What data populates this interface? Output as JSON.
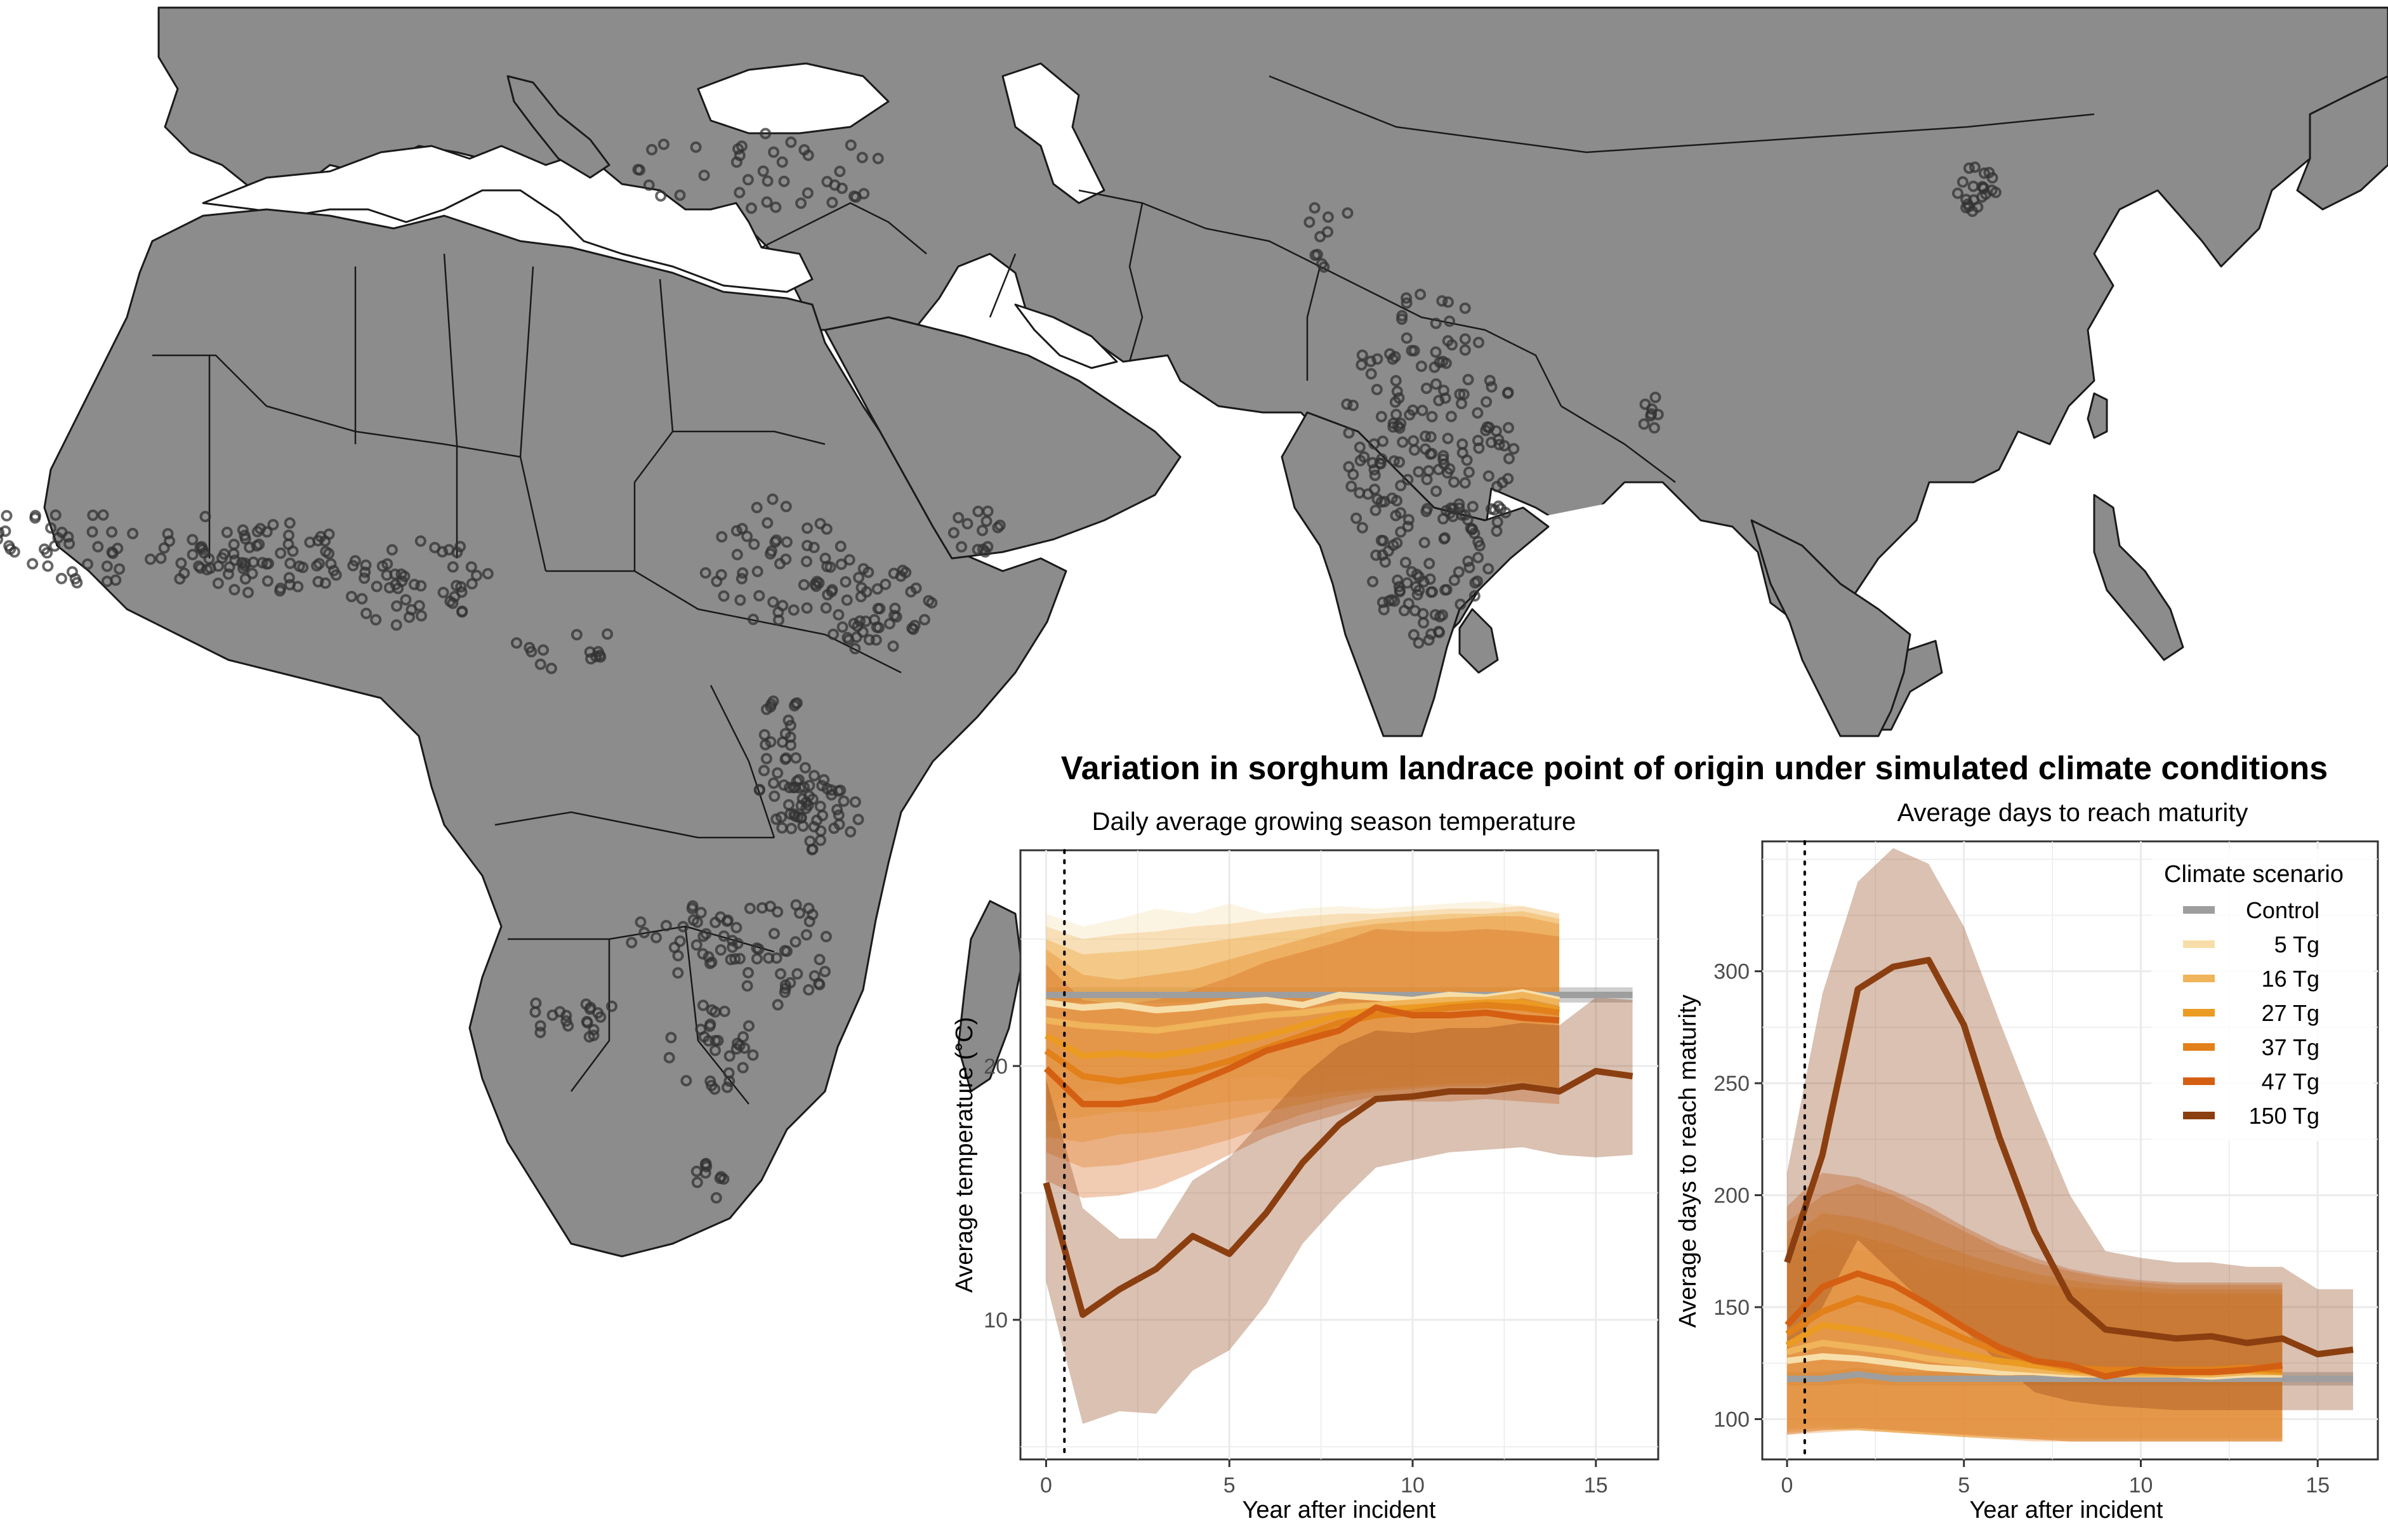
{
  "figure": {
    "title": "Variation in sorghum landrace point of origin under simulated climate conditions"
  },
  "map": {
    "land_color": "#8c8c8c",
    "border_color": "#1a1a1a",
    "point_color": "#333333"
  },
  "legend": {
    "title": "Climate scenario",
    "items": [
      {
        "label": "Control",
        "color": "#9e9e9e"
      },
      {
        "label": "5 Tg",
        "color": "#f7dea8"
      },
      {
        "label": "16 Tg",
        "color": "#f0b45a"
      },
      {
        "label": "27 Tg",
        "color": "#eb9a22"
      },
      {
        "label": "37 Tg",
        "color": "#e2801a"
      },
      {
        "label": "47 Tg",
        "color": "#d45f12"
      },
      {
        "label": "150 Tg",
        "color": "#8b3f10"
      }
    ]
  },
  "chart_data": [
    {
      "type": "line",
      "title": "Daily average growing season temperature",
      "xlabel": "Year after incident",
      "ylabel": "Average temperature (°C)",
      "xlim": [
        -0.7,
        16.7
      ],
      "ylim": [
        4.5,
        28.5
      ],
      "xticks": [
        0,
        5,
        10,
        15
      ],
      "yticks": [
        10,
        20
      ],
      "grid": true,
      "vline_x": 0.5,
      "series": [
        {
          "name": "Control",
          "color": "#9e9e9e",
          "x": [
            0,
            1,
            2,
            3,
            4,
            5,
            6,
            7,
            8,
            9,
            10,
            11,
            12,
            13,
            14,
            15,
            16
          ],
          "y": [
            22.8,
            22.8,
            22.8,
            22.8,
            22.8,
            22.8,
            22.8,
            22.8,
            22.8,
            22.8,
            22.8,
            22.8,
            22.8,
            22.8,
            22.8,
            22.8,
            22.8
          ],
          "lower": [
            22.5,
            22.5,
            22.5,
            22.5,
            22.5,
            22.5,
            22.5,
            22.5,
            22.5,
            22.5,
            22.5,
            22.5,
            22.5,
            22.5,
            22.5,
            22.5,
            22.5
          ],
          "upper": [
            23.1,
            23.1,
            23.1,
            23.1,
            23.1,
            23.1,
            23.1,
            23.1,
            23.1,
            23.1,
            23.1,
            23.1,
            23.1,
            23.1,
            23.1,
            23.1,
            23.1
          ]
        },
        {
          "name": "5 Tg",
          "color": "#f7dea8",
          "x": [
            0,
            1,
            2,
            3,
            4,
            5,
            6,
            7,
            8,
            9,
            10,
            11,
            12,
            13,
            14
          ],
          "y": [
            22.5,
            22.3,
            22.4,
            22.2,
            22.3,
            22.5,
            22.6,
            22.4,
            22.8,
            22.7,
            22.6,
            22.8,
            22.7,
            22.9,
            22.6
          ],
          "lower": [
            18.5,
            19.0,
            19.2,
            19.0,
            19.3,
            19.5,
            19.6,
            19.4,
            19.6,
            19.5,
            19.4,
            19.6,
            19.5,
            19.7,
            19.3
          ],
          "upper": [
            26.0,
            25.5,
            25.8,
            26.2,
            26.0,
            26.4,
            26.0,
            26.2,
            26.3,
            26.2,
            26.3,
            26.4,
            26.5,
            26.3,
            26.0
          ]
        },
        {
          "name": "16 Tg",
          "color": "#f0b45a",
          "x": [
            0,
            1,
            2,
            3,
            4,
            5,
            6,
            7,
            8,
            9,
            10,
            11,
            12,
            13,
            14
          ],
          "y": [
            21.8,
            21.6,
            21.5,
            21.4,
            21.6,
            21.8,
            22.0,
            22.1,
            22.3,
            22.4,
            22.5,
            22.6,
            22.6,
            22.8,
            22.5
          ],
          "lower": [
            17.8,
            18.0,
            18.2,
            18.2,
            18.4,
            18.6,
            18.7,
            18.8,
            19.0,
            19.1,
            19.2,
            19.3,
            19.3,
            19.4,
            19.1
          ],
          "upper": [
            25.5,
            25.0,
            25.2,
            25.3,
            25.5,
            25.6,
            25.8,
            25.9,
            26.0,
            26.0,
            26.1,
            26.2,
            26.2,
            26.3,
            26.0
          ]
        },
        {
          "name": "27 Tg",
          "color": "#eb9a22",
          "x": [
            0,
            1,
            2,
            3,
            4,
            5,
            6,
            7,
            8,
            9,
            10,
            11,
            12,
            13,
            14
          ],
          "y": [
            21.2,
            20.4,
            20.5,
            20.4,
            20.6,
            20.9,
            21.2,
            21.6,
            22.0,
            22.2,
            22.3,
            22.4,
            22.5,
            22.5,
            22.2
          ],
          "lower": [
            17.2,
            17.0,
            17.3,
            17.4,
            17.6,
            17.9,
            18.2,
            18.5,
            18.8,
            19.0,
            19.1,
            19.2,
            19.2,
            19.3,
            19.0
          ],
          "upper": [
            25.0,
            24.4,
            24.5,
            24.6,
            24.8,
            25.0,
            25.2,
            25.4,
            25.6,
            25.8,
            25.9,
            26.0,
            26.0,
            26.1,
            25.8
          ]
        },
        {
          "name": "37 Tg",
          "color": "#e2801a",
          "x": [
            0,
            1,
            2,
            3,
            4,
            5,
            6,
            7,
            8,
            9,
            10,
            11,
            12,
            13,
            14
          ],
          "y": [
            20.6,
            19.6,
            19.4,
            19.6,
            19.8,
            20.2,
            20.7,
            21.2,
            21.7,
            22.0,
            22.1,
            22.3,
            22.4,
            22.3,
            22.1
          ],
          "lower": [
            16.6,
            16.0,
            16.1,
            16.4,
            16.7,
            17.1,
            17.6,
            18.1,
            18.5,
            18.8,
            18.9,
            19.0,
            19.1,
            19.1,
            18.9
          ],
          "upper": [
            24.6,
            23.6,
            23.4,
            23.6,
            23.8,
            24.2,
            24.6,
            25.0,
            25.4,
            25.6,
            25.7,
            25.8,
            25.9,
            25.9,
            25.6
          ]
        },
        {
          "name": "47 Tg",
          "color": "#d45f12",
          "x": [
            0,
            1,
            2,
            3,
            4,
            5,
            6,
            7,
            8,
            9,
            10,
            11,
            12,
            13,
            14
          ],
          "y": [
            19.9,
            18.5,
            18.5,
            18.7,
            19.3,
            19.9,
            20.6,
            21.0,
            21.4,
            22.3,
            22.0,
            22.0,
            22.1,
            21.9,
            21.8
          ],
          "lower": [
            15.5,
            14.8,
            14.9,
            15.2,
            15.8,
            16.5,
            17.2,
            17.7,
            18.1,
            18.7,
            18.6,
            18.6,
            18.7,
            18.6,
            18.5
          ],
          "upper": [
            24.0,
            22.6,
            22.4,
            22.6,
            23.0,
            23.5,
            24.1,
            24.5,
            24.9,
            25.4,
            25.3,
            25.3,
            25.4,
            25.3,
            25.1
          ]
        },
        {
          "name": "150 Tg",
          "color": "#8b3f10",
          "x": [
            0,
            1,
            2,
            3,
            4,
            5,
            6,
            7,
            8,
            9,
            10,
            11,
            12,
            13,
            14,
            15,
            16
          ],
          "y": [
            15.4,
            10.2,
            11.2,
            12.0,
            13.3,
            12.6,
            14.2,
            16.2,
            17.7,
            18.7,
            18.8,
            19.0,
            19.0,
            19.2,
            19.0,
            19.8,
            19.6
          ],
          "lower": [
            11.5,
            5.9,
            6.4,
            6.3,
            8.0,
            8.8,
            10.6,
            13.0,
            14.6,
            16.0,
            16.3,
            16.6,
            16.7,
            16.8,
            16.5,
            16.4,
            16.5
          ],
          "upper": [
            19.5,
            14.4,
            13.2,
            13.2,
            15.5,
            16.4,
            18.0,
            19.6,
            20.8,
            21.4,
            21.3,
            21.5,
            21.5,
            21.7,
            21.6,
            22.7,
            22.6
          ]
        }
      ]
    },
    {
      "type": "line",
      "title": "Average days to reach maturity",
      "xlabel": "Year after incident",
      "ylabel": "Average days to reach maturity",
      "xlim": [
        -0.7,
        16.7
      ],
      "ylim": [
        82,
        358
      ],
      "xticks": [
        0,
        5,
        10,
        15
      ],
      "yticks": [
        100,
        150,
        200,
        250,
        300
      ],
      "grid": true,
      "vline_x": 0.5,
      "series": [
        {
          "name": "Control",
          "color": "#9e9e9e",
          "x": [
            0,
            1,
            2,
            3,
            4,
            5,
            6,
            7,
            8,
            9,
            10,
            11,
            12,
            13,
            14,
            15,
            16
          ],
          "y": [
            118,
            118,
            120,
            118,
            118,
            118,
            118,
            118,
            118,
            118,
            118,
            118,
            118,
            118,
            118,
            118,
            118
          ],
          "lower": [
            115,
            115,
            116,
            115,
            115,
            115,
            115,
            115,
            115,
            115,
            115,
            115,
            115,
            115,
            115,
            115,
            115
          ],
          "upper": [
            121,
            121,
            123,
            121,
            121,
            121,
            121,
            121,
            121,
            121,
            121,
            121,
            121,
            121,
            121,
            121,
            121
          ]
        },
        {
          "name": "5 Tg",
          "color": "#f7dea8",
          "x": [
            0,
            1,
            2,
            3,
            4,
            5,
            6,
            7,
            8,
            9,
            10,
            11,
            12,
            13,
            14
          ],
          "y": [
            126,
            128,
            127,
            125,
            123,
            122,
            121,
            121,
            120,
            120,
            120,
            120,
            119,
            120,
            120
          ],
          "lower": [
            96,
            97,
            96,
            95,
            94,
            93,
            93,
            92,
            92,
            92,
            92,
            92,
            92,
            92,
            92
          ],
          "upper": [
            170,
            178,
            175,
            172,
            168,
            165,
            162,
            160,
            158,
            157,
            156,
            155,
            155,
            155,
            155
          ]
        },
        {
          "name": "16 Tg",
          "color": "#f0b45a",
          "x": [
            0,
            1,
            2,
            3,
            4,
            5,
            6,
            7,
            8,
            9,
            10,
            11,
            12,
            13,
            14
          ],
          "y": [
            130,
            134,
            132,
            130,
            127,
            125,
            123,
            122,
            121,
            120,
            120,
            120,
            120,
            121,
            121
          ],
          "lower": [
            95,
            96,
            95,
            94,
            93,
            92,
            92,
            91,
            91,
            91,
            91,
            91,
            91,
            91,
            91
          ],
          "upper": [
            175,
            185,
            182,
            178,
            172,
            168,
            164,
            161,
            159,
            158,
            157,
            156,
            156,
            156,
            156
          ]
        },
        {
          "name": "27 Tg",
          "color": "#eb9a22",
          "x": [
            0,
            1,
            2,
            3,
            4,
            5,
            6,
            7,
            8,
            9,
            10,
            11,
            12,
            13,
            14
          ],
          "y": [
            133,
            142,
            140,
            137,
            133,
            129,
            126,
            124,
            122,
            121,
            121,
            121,
            121,
            122,
            121
          ],
          "lower": [
            94,
            95,
            95,
            94,
            93,
            92,
            91,
            91,
            90,
            90,
            90,
            90,
            90,
            90,
            90
          ],
          "upper": [
            180,
            192,
            190,
            186,
            180,
            174,
            169,
            165,
            162,
            160,
            159,
            158,
            158,
            158,
            158
          ]
        },
        {
          "name": "37 Tg",
          "color": "#e2801a",
          "x": [
            0,
            1,
            2,
            3,
            4,
            5,
            6,
            7,
            8,
            9,
            10,
            11,
            12,
            13,
            14
          ],
          "y": [
            138,
            148,
            154,
            150,
            143,
            136,
            130,
            126,
            123,
            122,
            122,
            122,
            122,
            123,
            122
          ],
          "lower": [
            93,
            94,
            95,
            94,
            93,
            92,
            91,
            90,
            90,
            90,
            90,
            90,
            90,
            90,
            90
          ],
          "upper": [
            188,
            200,
            205,
            200,
            192,
            184,
            176,
            170,
            166,
            163,
            161,
            160,
            160,
            160,
            160
          ]
        },
        {
          "name": "47 Tg",
          "color": "#d45f12",
          "x": [
            0,
            1,
            2,
            3,
            4,
            5,
            6,
            7,
            8,
            9,
            10,
            11,
            12,
            13,
            14
          ],
          "y": [
            142,
            159,
            165,
            160,
            151,
            141,
            132,
            126,
            124,
            119,
            122,
            121,
            121,
            122,
            124
          ],
          "lower": [
            93,
            95,
            96,
            95,
            94,
            93,
            92,
            91,
            90,
            90,
            90,
            90,
            90,
            90,
            90
          ],
          "upper": [
            195,
            210,
            208,
            202,
            195,
            186,
            178,
            172,
            167,
            164,
            162,
            161,
            161,
            161,
            161
          ]
        },
        {
          "name": "150 Tg",
          "color": "#8b3f10",
          "x": [
            0,
            1,
            2,
            3,
            4,
            5,
            6,
            7,
            8,
            9,
            10,
            11,
            12,
            13,
            14,
            15,
            16
          ],
          "y": [
            170,
            218,
            292,
            302,
            305,
            276,
            226,
            184,
            154,
            140,
            138,
            136,
            137,
            134,
            136,
            129,
            131
          ],
          "lower": [
            130,
            150,
            180,
            165,
            150,
            140,
            125,
            112,
            108,
            106,
            105,
            104,
            104,
            104,
            104,
            104,
            104
          ],
          "upper": [
            210,
            290,
            340,
            355,
            348,
            320,
            278,
            238,
            200,
            175,
            172,
            170,
            170,
            168,
            168,
            158,
            158
          ]
        }
      ]
    }
  ]
}
